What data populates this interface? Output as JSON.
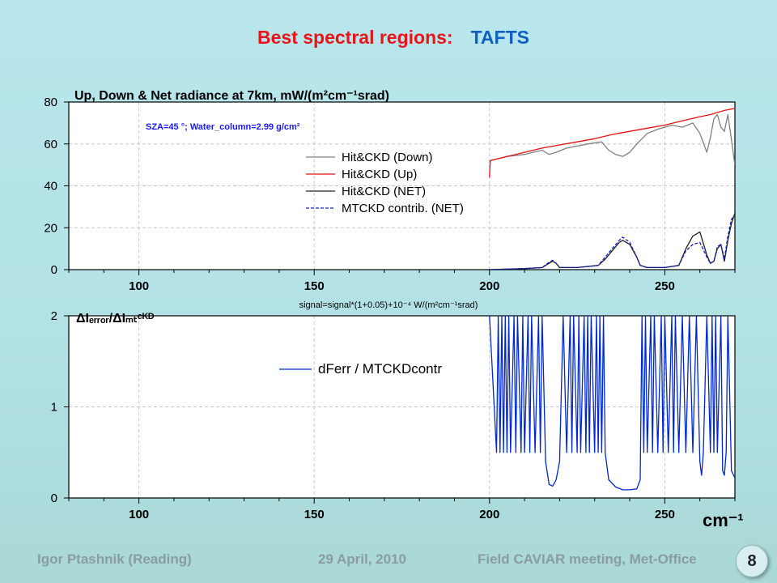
{
  "slide": {
    "title_part1": "Best spectral regions:",
    "title_part2": "TAFTS",
    "title_color1": "#e8141a",
    "title_color2": "#1060c0",
    "footer_left": "Igor Ptashnik (Reading)",
    "footer_center": "29 April, 2010",
    "footer_right": "Field CAVIAR meeting, Met-Office",
    "page_number": "8"
  },
  "chart_data": [
    {
      "type": "line",
      "title": "Up, Down & Net radiance at 7km,  mW/(m²cm⁻¹srad)",
      "annotation": "SZA=45 °; Water_column=2.99 g/cm²",
      "xlabel": "",
      "ylabel": "",
      "xlim": [
        80,
        270
      ],
      "ylim": [
        0,
        80
      ],
      "xticks": [
        100,
        150,
        200,
        250
      ],
      "yticks": [
        0,
        20,
        40,
        60,
        80
      ],
      "grid": true,
      "legend_position": "center",
      "series": [
        {
          "name": "Hit&CKD (Down)",
          "color": "#808080",
          "style": "solid",
          "x": [
            200,
            200.2,
            205,
            210,
            215,
            217,
            219,
            222,
            228,
            232,
            234,
            236,
            238,
            240,
            242,
            245,
            248,
            252,
            255,
            258,
            260,
            262,
            263,
            264,
            265,
            266,
            267,
            268,
            269,
            270
          ],
          "y": [
            51,
            52,
            54,
            55,
            57,
            55,
            56,
            58,
            60,
            61,
            57,
            55,
            54,
            56,
            60,
            65,
            67,
            69,
            68,
            70,
            65,
            56,
            63,
            72,
            74,
            68,
            66,
            74,
            62,
            50
          ]
        },
        {
          "name": "Hit&CKD (Up)",
          "color": "#e81010",
          "style": "solid",
          "x": [
            200,
            200.2,
            205,
            210,
            215,
            220,
            225,
            230,
            235,
            240,
            245,
            250,
            255,
            260,
            263,
            265,
            267,
            270
          ],
          "y": [
            44,
            52,
            54,
            56,
            58,
            59.5,
            61,
            62.5,
            64.5,
            66,
            67.5,
            69,
            71,
            73,
            74,
            75,
            76,
            77
          ]
        },
        {
          "name": "Hit&CKD (NET)",
          "color": "#202020",
          "style": "solid",
          "x": [
            200,
            210,
            215,
            217,
            218,
            219,
            220,
            225,
            231,
            233,
            235,
            237,
            238,
            240,
            242,
            243,
            245,
            250,
            254,
            256,
            258,
            260,
            262,
            263,
            264,
            265,
            266,
            267,
            268,
            269,
            270
          ],
          "y": [
            0,
            0.5,
            1,
            3,
            4,
            3,
            1,
            1,
            2,
            5,
            9,
            13,
            14,
            12,
            6,
            2,
            1,
            1,
            2,
            10,
            16,
            18,
            7,
            3,
            4,
            10,
            12,
            4,
            14,
            22,
            27
          ]
        },
        {
          "name": "MTCKD contrib. (NET)",
          "color": "#1020c0",
          "style": "dashed",
          "x": [
            200,
            210,
            215,
            217,
            218,
            219,
            220,
            225,
            231,
            233,
            235,
            237,
            238,
            240,
            242,
            243,
            245,
            250,
            254,
            256,
            258,
            260,
            262,
            263,
            264,
            265,
            266,
            267,
            268,
            269,
            270
          ],
          "y": [
            0,
            0.5,
            1,
            3.5,
            4.5,
            3,
            1,
            1,
            2,
            6,
            10,
            14,
            15.5,
            13,
            6,
            2,
            1,
            1,
            2,
            9,
            12,
            13,
            6,
            3,
            4,
            11,
            12,
            5,
            16,
            24,
            26
          ]
        }
      ]
    },
    {
      "type": "line",
      "title": "ΔIₑᵣᵣₒᵣ/ΔIₘₜᶜᴷᴰ",
      "annotation": "signal=signal*(1+0.05)+10⁻⁴ W/(m²cm⁻¹srad)",
      "xlabel": "cm⁻¹",
      "ylabel": "",
      "xlim": [
        80,
        270
      ],
      "ylim": [
        0,
        2
      ],
      "xticks": [
        100,
        150,
        200,
        250
      ],
      "yticks": [
        0,
        1,
        2
      ],
      "grid": true,
      "legend_position": "center-right",
      "series": [
        {
          "name": "dFerr / MTCKDcontr",
          "color": "#0028d0",
          "style": "solid",
          "x": [
            200,
            202,
            202.5,
            203,
            203.5,
            204,
            204.5,
            205,
            205.5,
            206,
            207,
            207.5,
            208,
            209,
            209.5,
            210,
            211,
            211.5,
            212,
            213,
            214,
            214.5,
            215,
            216,
            217,
            218,
            219,
            220,
            221,
            222,
            223,
            223.5,
            224,
            225,
            225.5,
            226,
            227,
            227.5,
            228,
            228.5,
            229,
            230,
            230.5,
            231,
            231.5,
            232,
            232.5,
            233,
            234,
            236,
            238,
            240,
            242,
            243,
            243.5,
            244,
            244.5,
            245,
            246,
            246.5,
            247,
            248,
            249,
            249.5,
            250,
            251,
            252,
            252.5,
            253,
            254,
            255,
            256,
            257,
            258,
            259,
            260,
            260.5,
            261,
            262,
            263,
            263.5,
            264,
            264.5,
            265,
            266,
            266.5,
            267,
            267.5,
            268,
            269,
            270
          ],
          "y": [
            2,
            0.5,
            2,
            0.5,
            2,
            0.5,
            2,
            0.5,
            2,
            0.5,
            2,
            0.5,
            2,
            0.5,
            2,
            0.5,
            2,
            0.5,
            2,
            0.5,
            2,
            0.5,
            2,
            0.4,
            0.15,
            0.13,
            0.2,
            0.4,
            2,
            0.5,
            2,
            0.5,
            2,
            0.5,
            2,
            0.5,
            2,
            0.5,
            2,
            0.5,
            2,
            0.5,
            2,
            0.5,
            2,
            0.5,
            2,
            0.5,
            0.2,
            0.12,
            0.09,
            0.09,
            0.1,
            0.2,
            2,
            0.5,
            2,
            0.5,
            2,
            0.5,
            2,
            0.5,
            2,
            0.5,
            2,
            0.5,
            2,
            0.5,
            2,
            0.5,
            2,
            0.5,
            2,
            0.5,
            2,
            0.4,
            0.25,
            0.5,
            2,
            0.5,
            2,
            0.5,
            2,
            0.5,
            2,
            0.3,
            0.25,
            0.5,
            2,
            0.3,
            0.22
          ]
        }
      ]
    }
  ]
}
